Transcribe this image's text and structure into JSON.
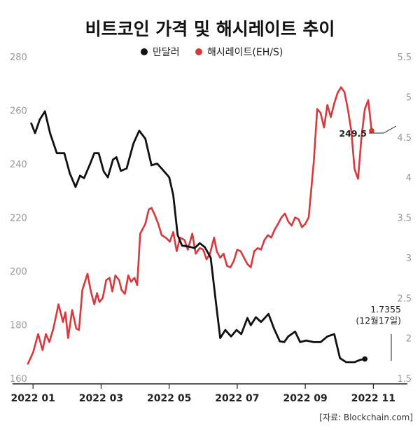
{
  "chart_data": {
    "type": "line",
    "title": "비트코인 가격 및 해시레이트 추이",
    "legend": [
      {
        "name": "만달러",
        "color": "#111111"
      },
      {
        "name": "해시레이트(EH/S)",
        "color": "#d9373c"
      }
    ],
    "legend_placement": "top",
    "x_range": [
      0,
      11.6
    ],
    "x_ticks": [
      {
        "x": 0.6,
        "label": "2022 01"
      },
      {
        "x": 2.6,
        "label": "2022 03"
      },
      {
        "x": 4.6,
        "label": "2022 05"
      },
      {
        "x": 6.6,
        "label": "2022 07"
      },
      {
        "x": 8.6,
        "label": "2022 09"
      },
      {
        "x": 10.6,
        "label": "2022 11"
      }
    ],
    "y_left": {
      "range": [
        160,
        280
      ],
      "ticks": [
        "160",
        "180",
        "200",
        "220",
        "240",
        "260",
        "280"
      ]
    },
    "y_right": {
      "range": [
        1.5,
        5.5
      ],
      "ticks": [
        "1.5",
        "2",
        "2.5",
        "3",
        "3.5",
        "4",
        "4.5",
        "5",
        "5.5"
      ]
    },
    "grid": false,
    "series": [
      {
        "name": "만달러",
        "axis": "right",
        "color": "#111111",
        "points": [
          [
            0.55,
            4.67
          ],
          [
            0.66,
            4.55
          ],
          [
            0.8,
            4.72
          ],
          [
            0.95,
            4.82
          ],
          [
            1.1,
            4.55
          ],
          [
            1.3,
            4.3
          ],
          [
            1.52,
            4.3
          ],
          [
            1.68,
            4.05
          ],
          [
            1.85,
            3.88
          ],
          [
            1.98,
            4.02
          ],
          [
            2.1,
            3.99
          ],
          [
            2.28,
            4.17
          ],
          [
            2.4,
            4.3
          ],
          [
            2.53,
            4.3
          ],
          [
            2.68,
            4.07
          ],
          [
            2.8,
            4.0
          ],
          [
            2.95,
            4.22
          ],
          [
            3.05,
            4.25
          ],
          [
            3.18,
            4.08
          ],
          [
            3.35,
            4.11
          ],
          [
            3.55,
            4.42
          ],
          [
            3.72,
            4.58
          ],
          [
            3.9,
            4.48
          ],
          [
            4.08,
            4.15
          ],
          [
            4.25,
            4.17
          ],
          [
            4.4,
            4.1
          ],
          [
            4.6,
            4.0
          ],
          [
            4.72,
            3.78
          ],
          [
            4.85,
            3.28
          ],
          [
            4.98,
            3.15
          ],
          [
            5.15,
            3.14
          ],
          [
            5.35,
            3.12
          ],
          [
            5.5,
            3.18
          ],
          [
            5.65,
            3.13
          ],
          [
            5.82,
            3.0
          ],
          [
            5.98,
            2.42
          ],
          [
            6.1,
            2.0
          ],
          [
            6.25,
            2.1
          ],
          [
            6.42,
            2.02
          ],
          [
            6.58,
            2.1
          ],
          [
            6.72,
            2.05
          ],
          [
            6.9,
            2.25
          ],
          [
            7.0,
            2.16
          ],
          [
            7.15,
            2.26
          ],
          [
            7.3,
            2.2
          ],
          [
            7.52,
            2.3
          ],
          [
            7.68,
            2.12
          ],
          [
            7.85,
            1.96
          ],
          [
            7.98,
            1.95
          ],
          [
            8.1,
            2.02
          ],
          [
            8.3,
            2.08
          ],
          [
            8.45,
            1.95
          ],
          [
            8.62,
            1.97
          ],
          [
            8.85,
            1.95
          ],
          [
            9.05,
            1.95
          ],
          [
            9.25,
            2.02
          ],
          [
            9.45,
            2.05
          ],
          [
            9.62,
            1.75
          ],
          [
            9.8,
            1.7
          ],
          [
            9.95,
            1.7
          ],
          [
            10.05,
            1.7
          ],
          [
            10.22,
            1.73
          ],
          [
            10.35,
            1.74
          ]
        ]
      },
      {
        "name": "해시레이트(EH/S)",
        "axis": "right",
        "color": "#d9373c",
        "points": [
          [
            0.45,
            1.68
          ],
          [
            0.6,
            1.82
          ],
          [
            0.75,
            2.05
          ],
          [
            0.88,
            1.85
          ],
          [
            0.98,
            2.05
          ],
          [
            1.08,
            1.95
          ],
          [
            1.2,
            2.12
          ],
          [
            1.35,
            2.42
          ],
          [
            1.48,
            2.2
          ],
          [
            1.55,
            2.32
          ],
          [
            1.63,
            2.0
          ],
          [
            1.75,
            2.35
          ],
          [
            1.87,
            2.12
          ],
          [
            1.95,
            2.1
          ],
          [
            2.05,
            2.6
          ],
          [
            2.2,
            2.8
          ],
          [
            2.3,
            2.58
          ],
          [
            2.4,
            2.42
          ],
          [
            2.48,
            2.56
          ],
          [
            2.55,
            2.45
          ],
          [
            2.65,
            2.5
          ],
          [
            2.75,
            2.72
          ],
          [
            2.85,
            2.75
          ],
          [
            2.93,
            2.58
          ],
          [
            3.02,
            2.78
          ],
          [
            3.13,
            2.72
          ],
          [
            3.2,
            2.6
          ],
          [
            3.3,
            2.55
          ],
          [
            3.4,
            2.78
          ],
          [
            3.48,
            2.7
          ],
          [
            3.58,
            2.75
          ],
          [
            3.66,
            2.66
          ],
          [
            3.75,
            3.3
          ],
          [
            3.9,
            3.42
          ],
          [
            4.0,
            3.6
          ],
          [
            4.08,
            3.62
          ],
          [
            4.18,
            3.53
          ],
          [
            4.28,
            3.42
          ],
          [
            4.38,
            3.28
          ],
          [
            4.5,
            3.25
          ],
          [
            4.62,
            3.2
          ],
          [
            4.72,
            3.32
          ],
          [
            4.82,
            3.08
          ],
          [
            4.92,
            3.25
          ],
          [
            5.05,
            3.22
          ],
          [
            5.15,
            3.1
          ],
          [
            5.28,
            3.3
          ],
          [
            5.38,
            3.05
          ],
          [
            5.5,
            3.12
          ],
          [
            5.6,
            3.1
          ],
          [
            5.7,
            2.98
          ],
          [
            5.8,
            3.05
          ],
          [
            5.92,
            3.25
          ],
          [
            6.0,
            3.08
          ],
          [
            6.1,
            3.0
          ],
          [
            6.2,
            3.05
          ],
          [
            6.3,
            2.9
          ],
          [
            6.4,
            2.88
          ],
          [
            6.5,
            2.96
          ],
          [
            6.6,
            3.1
          ],
          [
            6.7,
            3.08
          ],
          [
            6.8,
            3.0
          ],
          [
            6.9,
            2.92
          ],
          [
            7.0,
            2.88
          ],
          [
            7.1,
            3.08
          ],
          [
            7.2,
            3.12
          ],
          [
            7.3,
            3.1
          ],
          [
            7.4,
            3.22
          ],
          [
            7.5,
            3.28
          ],
          [
            7.6,
            3.25
          ],
          [
            7.7,
            3.35
          ],
          [
            7.8,
            3.42
          ],
          [
            7.9,
            3.5
          ],
          [
            8.0,
            3.55
          ],
          [
            8.1,
            3.45
          ],
          [
            8.2,
            3.4
          ],
          [
            8.3,
            3.5
          ],
          [
            8.4,
            3.48
          ],
          [
            8.5,
            3.38
          ],
          [
            8.6,
            3.42
          ],
          [
            8.7,
            3.5
          ],
          [
            8.85,
            4.2
          ],
          [
            8.95,
            4.85
          ],
          [
            9.05,
            4.8
          ],
          [
            9.15,
            4.62
          ],
          [
            9.25,
            4.9
          ],
          [
            9.35,
            4.75
          ],
          [
            9.45,
            4.92
          ],
          [
            9.55,
            5.05
          ],
          [
            9.65,
            5.12
          ],
          [
            9.75,
            5.06
          ],
          [
            9.85,
            4.85
          ],
          [
            9.95,
            4.58
          ],
          [
            10.05,
            4.1
          ],
          [
            10.15,
            3.98
          ],
          [
            10.25,
            4.5
          ],
          [
            10.35,
            4.85
          ],
          [
            10.45,
            4.96
          ],
          [
            10.55,
            4.58
          ]
        ]
      }
    ],
    "annotations": {
      "right_label": "1.7355",
      "right_date": "(12월17일)",
      "left_label": "249.5"
    }
  },
  "source": "[자료: Blockchain.com]"
}
